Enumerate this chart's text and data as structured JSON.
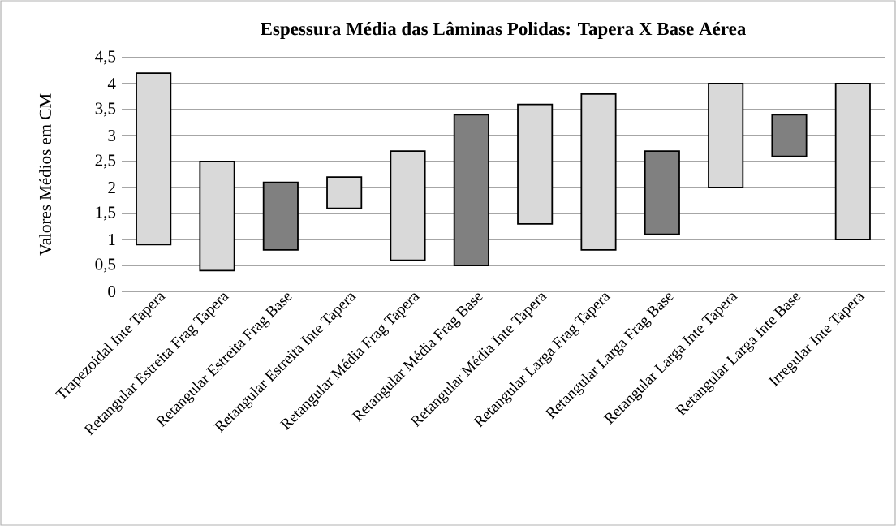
{
  "chart_data": {
    "type": "bar",
    "title": "Espessura Média das Lâminas Polidas: Tapera X Base Aérea",
    "ylabel": "Valores Médios em CM",
    "categories": [
      "Trapezoidal Inte Tapera",
      "Retangular Estreita Frag Tapera",
      "Retangular Estreita Frag Base",
      "Retangular Estreita Inte Tapera",
      "Retangular Média Frag Tapera",
      "Retangular Média Frag Base",
      "Retangular Média Inte Tapera",
      "Retangular Larga Frag Tapera",
      "Retangular Larga Frag Base",
      "Retangular Larga Inte Tapera",
      "Retangular Larga Inte Base",
      "Irregular Inte Tapera"
    ],
    "base": [
      0.9,
      0.4,
      0.8,
      1.6,
      0.6,
      0.5,
      1.3,
      0.8,
      1.1,
      2.0,
      2.6,
      1.0
    ],
    "values": [
      3.3,
      2.1,
      1.3,
      0.6,
      2.1,
      2.9,
      2.3,
      3.0,
      1.6,
      2.0,
      0.8,
      3.0
    ],
    "colors": [
      "#d9d9d9",
      "#d9d9d9",
      "#808080",
      "#d9d9d9",
      "#d9d9d9",
      "#808080",
      "#d9d9d9",
      "#d9d9d9",
      "#808080",
      "#d9d9d9",
      "#808080",
      "#d9d9d9"
    ],
    "ylim": [
      0,
      4.5
    ],
    "yticks": [
      0,
      {
        "value": 0.5,
        "label": "0,5"
      },
      1,
      {
        "value": 1.5,
        "label": "1,5"
      },
      2,
      {
        "value": 2.5,
        "label": "2,5"
      },
      3,
      {
        "value": 3.5,
        "label": "3,5"
      },
      4,
      {
        "value": 4.5,
        "label": "4,5"
      }
    ],
    "grid": "y"
  }
}
